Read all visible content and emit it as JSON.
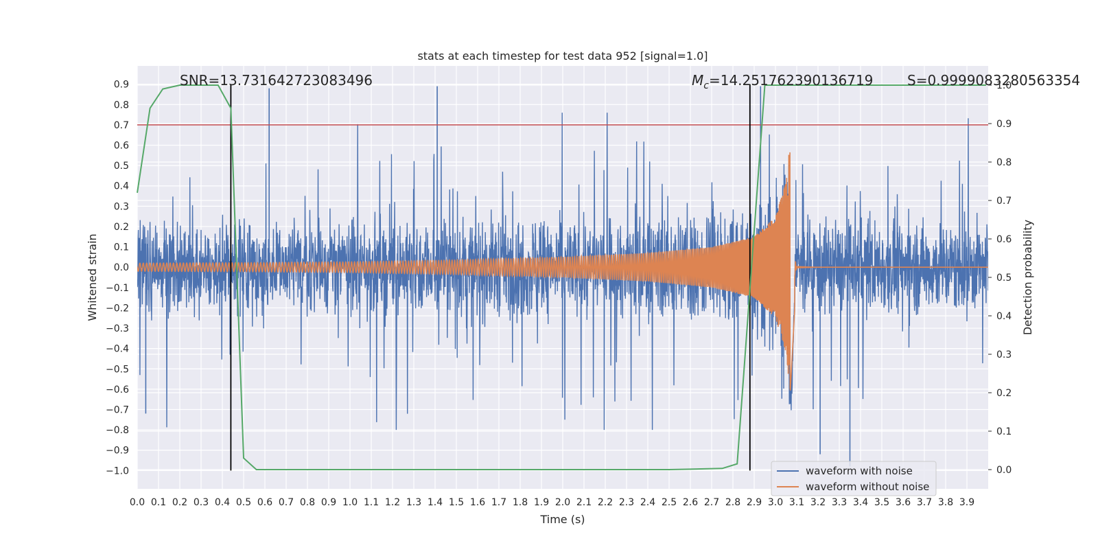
{
  "chart_data": {
    "type": "line",
    "title": "stats at each timestep for test data 952 [signal=1.0]",
    "xlabel": "Time (s)",
    "ylabel_left": "Whitened strain",
    "ylabel_right": "Detection probability",
    "xlim": [
      0.0,
      4.0
    ],
    "ylim_left": [
      -1.09,
      0.99
    ],
    "ylim_right": [
      -0.05,
      1.05
    ],
    "x_ticks": [
      "0.0",
      "0.1",
      "0.2",
      "0.3",
      "0.4",
      "0.5",
      "0.6",
      "0.7",
      "0.8",
      "0.9",
      "1.0",
      "1.1",
      "1.2",
      "1.3",
      "1.4",
      "1.5",
      "1.6",
      "1.7",
      "1.8",
      "1.9",
      "2.0",
      "2.1",
      "2.2",
      "2.3",
      "2.4",
      "2.5",
      "2.6",
      "2.7",
      "2.8",
      "2.9",
      "3.0",
      "3.1",
      "3.2",
      "3.3",
      "3.4",
      "3.5",
      "3.6",
      "3.7",
      "3.8",
      "3.9"
    ],
    "y_ticks_left": [
      "0.9",
      "0.8",
      "0.7",
      "0.6",
      "0.5",
      "0.4",
      "0.3",
      "0.2",
      "0.1",
      "0.0",
      "−0.1",
      "−0.2",
      "−0.3",
      "−0.4",
      "−0.5",
      "−0.6",
      "−0.7",
      "−0.8",
      "−0.9",
      "−1.0"
    ],
    "y_ticks_right": [
      "1.0",
      "0.9",
      "0.8",
      "0.7",
      "0.6",
      "0.5",
      "0.4",
      "0.3",
      "0.2",
      "0.1",
      "0.0"
    ],
    "annotations": {
      "snr": "SNR=13.731642723083496",
      "mc_symbol": "M",
      "mc_sub": "c",
      "mc_value": "=14.251762390136719",
      "s_label": "S=0.9999083280563354"
    },
    "legend": {
      "position": "lower-right",
      "entries": [
        "waveform with noise",
        "waveform without noise"
      ]
    },
    "threshold_line": {
      "axis": "left",
      "y": 0.7
    },
    "vertical_markers_x": [
      0.44,
      2.88
    ],
    "series": [
      {
        "name": "waveform with noise",
        "axis": "left",
        "description": "dense whitened noise trace, approx ±0.35 typical, spikes to ±0.9",
        "x_range": [
          0.0,
          4.0
        ],
        "notable_peaks": [
          [
            1.41,
            0.89
          ],
          [
            0.62,
            0.88
          ],
          [
            2.93,
            0.89
          ],
          [
            3.35,
            -0.98
          ],
          [
            3.21,
            -0.92
          ],
          [
            0.04,
            -0.72
          ]
        ]
      },
      {
        "name": "waveform without noise",
        "axis": "left",
        "description": "chirp with rising amplitude and frequency, merger near 3.07 s",
        "x": [
          0.0,
          0.5,
          1.0,
          1.5,
          2.0,
          2.4,
          2.7,
          2.9,
          3.0,
          3.05,
          3.07,
          3.1,
          3.2,
          4.0
        ],
        "envelope": [
          0.02,
          0.022,
          0.026,
          0.035,
          0.05,
          0.07,
          0.1,
          0.15,
          0.25,
          0.42,
          0.63,
          0.02,
          0.0,
          0.0
        ]
      },
      {
        "name": "detection probability",
        "axis": "right",
        "x": [
          0.0,
          0.06,
          0.12,
          0.2,
          0.38,
          0.44,
          0.5,
          0.56,
          0.6,
          1.5,
          2.5,
          2.75,
          2.82,
          2.95,
          3.0,
          3.5,
          3.99
        ],
        "values": [
          0.72,
          0.94,
          0.99,
          1.0,
          1.0,
          0.94,
          0.03,
          0.0,
          0.0,
          0.0,
          0.0,
          0.003,
          0.015,
          1.0,
          1.0,
          1.0,
          1.0
        ]
      }
    ],
    "colors": {
      "noise": "#4c72b0",
      "clean": "#dd8452",
      "probability": "#55a868",
      "threshold": "#c44e52",
      "marker": "#000000",
      "axes_bg": "#eaeaf2",
      "grid": "#ffffff"
    }
  }
}
